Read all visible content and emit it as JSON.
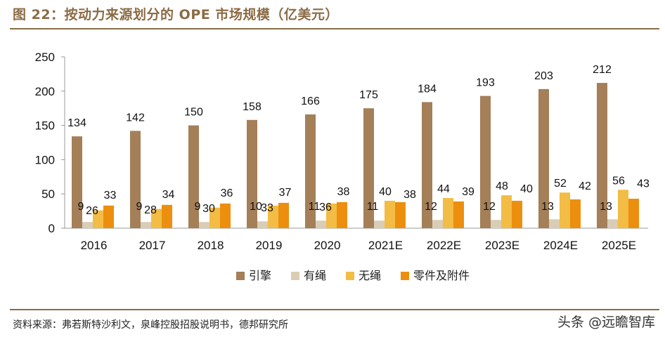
{
  "header": {
    "title": "图 22：按动力来源划分的 OPE 市场规模（亿美元）"
  },
  "footer": {
    "source": "资料来源：弗若斯特沙利文，泉峰控股招股说明书，德邦研究所",
    "watermark": "头条 @远瞻智库"
  },
  "chart_data": {
    "type": "bar",
    "title": "按动力来源划分的 OPE 市场规模（亿美元）",
    "xlabel": "",
    "ylabel": "",
    "ylim": [
      0,
      250
    ],
    "yticks": [
      0,
      50,
      100,
      150,
      200,
      250
    ],
    "grid": false,
    "legend_position": "bottom",
    "categories": [
      "2016",
      "2017",
      "2018",
      "2019",
      "2020",
      "2021E",
      "2022E",
      "2023E",
      "2024E",
      "2025E"
    ],
    "series": [
      {
        "name": "引擎",
        "color": "#A47F58",
        "values": [
          134,
          142,
          150,
          158,
          166,
          175,
          184,
          193,
          203,
          212
        ]
      },
      {
        "name": "有绳",
        "color": "#D9CDB5",
        "values": [
          9,
          9,
          9,
          10,
          11,
          11,
          12,
          12,
          13,
          13
        ]
      },
      {
        "name": "无绳",
        "color": "#F2BC45",
        "values": [
          26,
          28,
          30,
          33,
          36,
          40,
          44,
          48,
          52,
          56
        ]
      },
      {
        "name": "零件及附件",
        "color": "#EC8F0E",
        "values": [
          33,
          34,
          36,
          37,
          38,
          38,
          39,
          40,
          42,
          43
        ]
      }
    ]
  }
}
